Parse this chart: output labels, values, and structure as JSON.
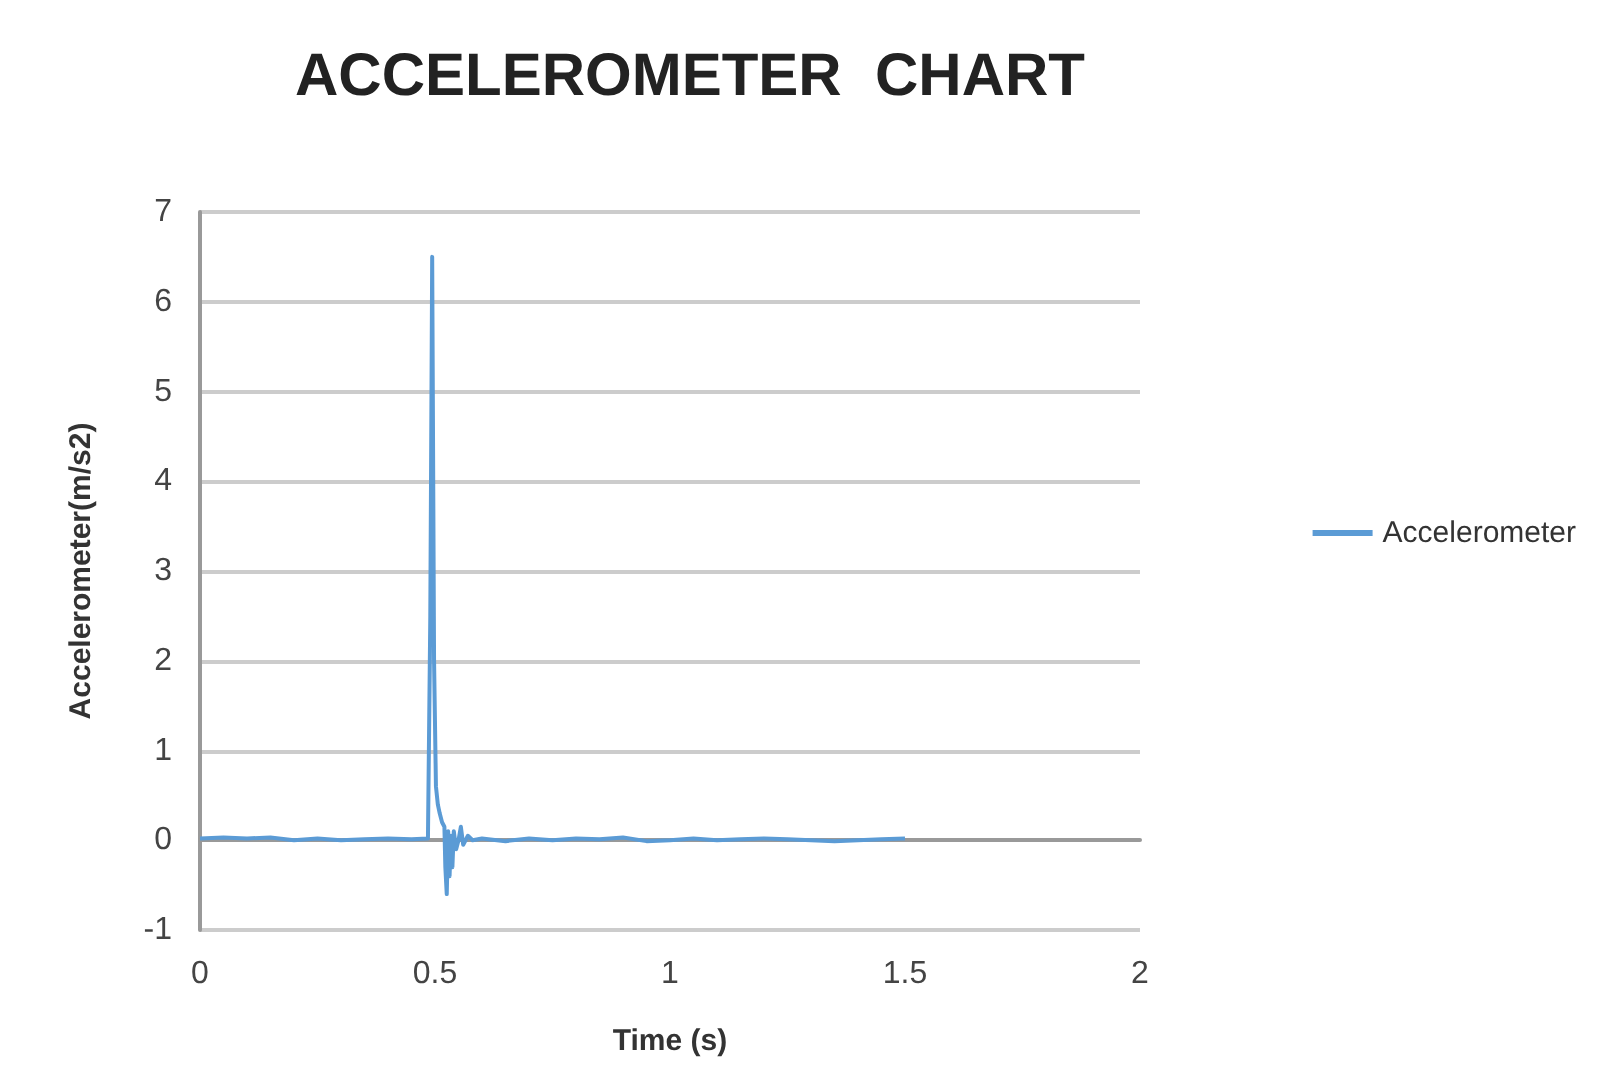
{
  "chart_data": {
    "type": "line",
    "title": "ACCELEROMETER  CHART",
    "xlabel": "Time (s)",
    "ylabel": "Accelerometer(m/s2)",
    "series": [
      {
        "name": "Accelerometer",
        "color": "#5b9bd5",
        "x": [
          0,
          0.05,
          0.1,
          0.15,
          0.2,
          0.25,
          0.3,
          0.35,
          0.4,
          0.45,
          0.485,
          0.49,
          0.494,
          0.498,
          0.502,
          0.506,
          0.51,
          0.515,
          0.52,
          0.522,
          0.525,
          0.528,
          0.531,
          0.534,
          0.537,
          0.54,
          0.545,
          0.55,
          0.555,
          0.56,
          0.57,
          0.58,
          0.6,
          0.65,
          0.7,
          0.75,
          0.8,
          0.85,
          0.9,
          0.95,
          1.0,
          1.05,
          1.1,
          1.15,
          1.2,
          1.25,
          1.3,
          1.35,
          1.4,
          1.45,
          1.5
        ],
        "values": [
          0.02,
          0.03,
          0.02,
          0.03,
          0.0,
          0.02,
          0.0,
          0.01,
          0.02,
          0.01,
          0.02,
          2.5,
          6.5,
          2.0,
          0.6,
          0.4,
          0.3,
          0.2,
          0.15,
          -0.3,
          -0.6,
          0.1,
          -0.4,
          0.05,
          -0.3,
          0.1,
          -0.1,
          0.0,
          0.15,
          -0.05,
          0.05,
          0.0,
          0.02,
          -0.01,
          0.02,
          0.0,
          0.02,
          0.01,
          0.03,
          -0.01,
          0.0,
          0.02,
          0.0,
          0.01,
          0.02,
          0.01,
          0.0,
          -0.01,
          0.0,
          0.01,
          0.02
        ]
      }
    ],
    "xlim": [
      0,
      2
    ],
    "xticks": [
      0,
      0.5,
      1,
      1.5,
      2
    ],
    "ylim": [
      -1,
      7
    ],
    "yticks": [
      -1,
      0,
      1,
      2,
      3,
      4,
      5,
      6,
      7
    ],
    "grid": "y",
    "legend": "right",
    "marker": "none",
    "line_style": "solid"
  }
}
